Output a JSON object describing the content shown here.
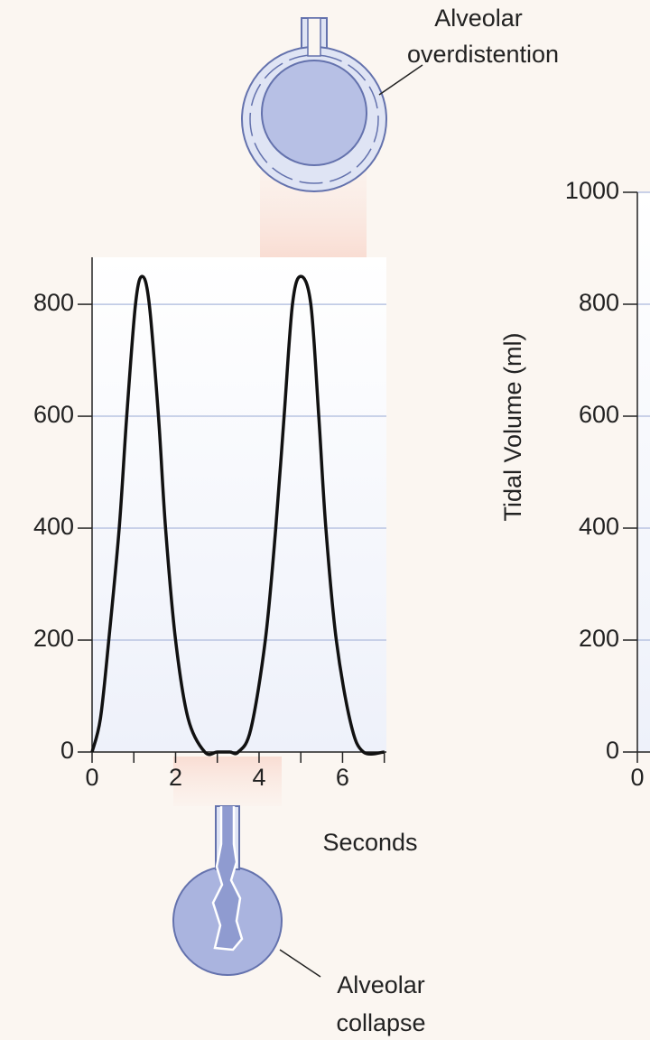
{
  "chart_data": [
    {
      "type": "line",
      "xlabel": "Seconds",
      "annotations": [
        [
          "Alveolar",
          "overdistention"
        ],
        [
          "Alveolar",
          "collapse"
        ]
      ],
      "x": [
        0,
        0.2,
        0.4,
        0.65,
        0.83,
        1.04,
        1.2,
        1.37,
        1.59,
        1.76,
        2.0,
        2.3,
        2.7,
        3.0,
        3.3,
        3.5,
        3.8,
        4.15,
        4.4,
        4.6,
        4.8,
        5.0,
        5.24,
        5.43,
        5.6,
        5.85,
        6.2,
        6.5,
        7.0
      ],
      "series": [
        {
          "color": "#111111",
          "values": [
            0,
            60,
            200,
            400,
            600,
            800,
            850,
            800,
            600,
            400,
            200,
            60,
            0,
            0,
            0,
            0,
            40,
            200,
            400,
            600,
            800,
            850,
            800,
            600,
            400,
            200,
            50,
            0,
            0
          ]
        }
      ],
      "xlim": [
        0,
        7.05
      ],
      "xticks": [
        0,
        2,
        4,
        6
      ],
      "xminorticks": [
        1,
        3,
        5,
        7
      ],
      "ylim": [
        0,
        884
      ],
      "yticks": [
        0,
        200,
        400,
        600,
        800
      ],
      "grid": true
    },
    {
      "type": "line",
      "ylabel": "Tidal Volume (ml)",
      "series": [],
      "xlim": [
        0,
        7.05
      ],
      "xticks": [
        0
      ],
      "ylim": [
        0,
        1000
      ],
      "yticks": [
        0,
        200,
        400,
        600,
        800,
        1000
      ],
      "grid": true
    }
  ]
}
